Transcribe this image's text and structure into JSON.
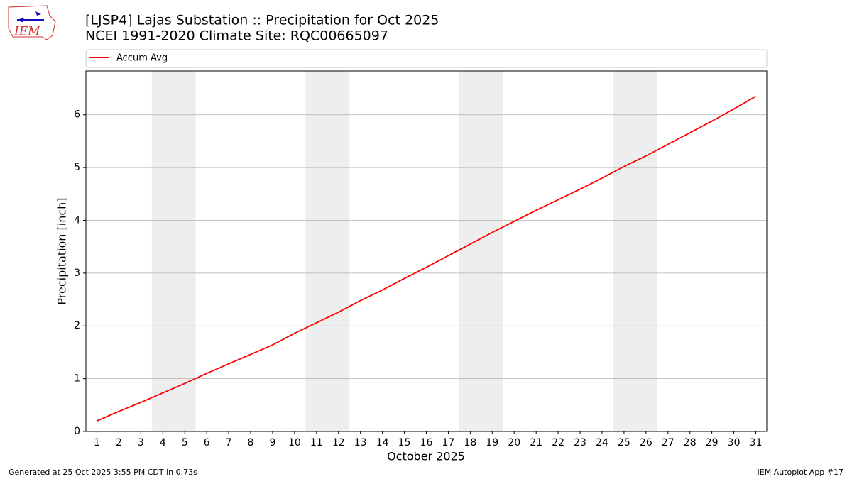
{
  "chart_data": {
    "type": "line",
    "title": "[LJSP4] Lajas Substation :: Precipitation for Oct 2025",
    "subtitle": "NCEI 1991-2020 Climate Site: RQC00665097",
    "logo_text": "IEM",
    "xlabel": "October 2025",
    "ylabel": "Precipitation [inch]",
    "x": [
      1,
      2,
      3,
      4,
      5,
      6,
      7,
      8,
      9,
      10,
      11,
      12,
      13,
      14,
      15,
      16,
      17,
      18,
      19,
      20,
      21,
      22,
      23,
      24,
      25,
      26,
      27,
      28,
      29,
      30,
      31
    ],
    "series": [
      {
        "name": "Accum Avg",
        "color": "#ff0000",
        "values": [
          0.2,
          0.38,
          0.55,
          0.73,
          0.91,
          1.1,
          1.28,
          1.46,
          1.64,
          1.86,
          2.06,
          2.26,
          2.48,
          2.68,
          2.9,
          3.11,
          3.33,
          3.55,
          3.77,
          3.98,
          4.19,
          4.39,
          4.59,
          4.8,
          5.02,
          5.22,
          5.44,
          5.66,
          5.88,
          6.11,
          6.35
        ]
      }
    ],
    "xlim": [
      0.5,
      31.5
    ],
    "xticks": [
      1,
      2,
      3,
      4,
      5,
      6,
      7,
      8,
      9,
      10,
      11,
      12,
      13,
      14,
      15,
      16,
      17,
      18,
      19,
      20,
      21,
      22,
      23,
      24,
      25,
      26,
      27,
      28,
      29,
      30,
      31
    ],
    "ylim": [
      0,
      6.83
    ],
    "yticks": [
      0,
      1,
      2,
      3,
      4,
      5,
      6
    ],
    "grid": true,
    "weekend_spans": [
      [
        3.5,
        5.5
      ],
      [
        10.5,
        12.5
      ],
      [
        17.5,
        19.5
      ],
      [
        24.5,
        26.5
      ]
    ],
    "span_color": "#eeeeee",
    "legend": "top",
    "footer_left": "Generated at 25 Oct 2025 3:55 PM CDT in 0.73s",
    "footer_right": "IEM Autoplot App #17"
  }
}
